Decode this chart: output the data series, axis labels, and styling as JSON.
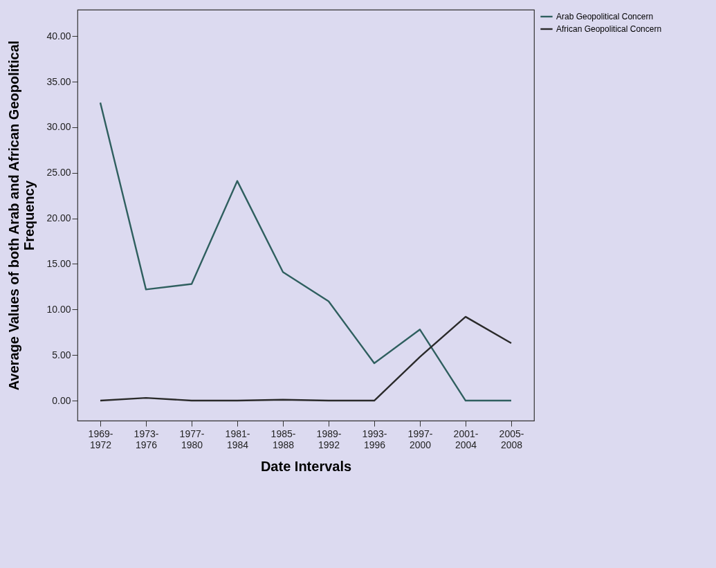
{
  "chart_data": {
    "type": "line",
    "xlabel": "Date Intervals",
    "ylabel": "Average Values of both Arab and African Geopolitical Frequency",
    "categories": [
      "1969-1972",
      "1973-1976",
      "1977-1980",
      "1981-1984",
      "1985-1988",
      "1989-1992",
      "1993-1996",
      "1997-2000",
      "2001-2004",
      "2005-2008"
    ],
    "series": [
      {
        "name": "Arab Geopolitical Concern",
        "color": "#2f5f5f",
        "values": [
          32.7,
          12.2,
          12.8,
          24.1,
          14.1,
          10.9,
          4.1,
          7.8,
          0,
          0
        ]
      },
      {
        "name": "African Geopolitical Concern",
        "color": "#2a2a2a",
        "values": [
          0,
          0.3,
          0,
          0,
          0.1,
          0,
          0,
          4.8,
          9.2,
          6.3
        ]
      }
    ],
    "ylim": [
      -2.2,
      42.9
    ],
    "yticks": [
      {
        "value": 0,
        "label": "0.00"
      },
      {
        "value": 5,
        "label": "5.00"
      },
      {
        "value": 10,
        "label": "10.00"
      },
      {
        "value": 15,
        "label": "15.00"
      },
      {
        "value": 20,
        "label": "20.00"
      },
      {
        "value": 25,
        "label": "25.00"
      },
      {
        "value": 30,
        "label": "30.00"
      },
      {
        "value": 35,
        "label": "35.00"
      },
      {
        "value": 40,
        "label": "40.00"
      }
    ],
    "grid": false,
    "legend": "top right",
    "marker": "none",
    "line_style": "solid"
  }
}
